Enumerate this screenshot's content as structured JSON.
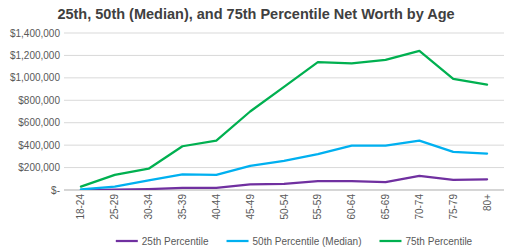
{
  "chart_data": {
    "type": "line",
    "title": "25th, 50th (Median), and 75th Percentile Net Worth by Age",
    "categories": [
      "18-24",
      "25-29",
      "30-34",
      "35-39",
      "40-44",
      "45-49",
      "50-54",
      "55-59",
      "60-64",
      "65-69",
      "70-74",
      "75-79",
      "80+"
    ],
    "series": [
      {
        "name": "25th Percentile",
        "color": "#7030a0",
        "values": [
          0,
          3000,
          8000,
          18000,
          20000,
          50000,
          55000,
          80000,
          80000,
          70000,
          125000,
          90000,
          95000
        ]
      },
      {
        "name": "50th Percentile (Median)",
        "color": "#00b0f0",
        "values": [
          5000,
          30000,
          85000,
          140000,
          135000,
          215000,
          260000,
          320000,
          395000,
          395000,
          440000,
          340000,
          325000
        ]
      },
      {
        "name": "75th Percentile",
        "color": "#00b050",
        "values": [
          30000,
          135000,
          190000,
          390000,
          440000,
          700000,
          920000,
          1140000,
          1130000,
          1160000,
          1240000,
          990000,
          940000
        ]
      }
    ],
    "ylim": [
      0,
      1400000
    ],
    "yticks": [
      {
        "value": 0,
        "label": "$-"
      },
      {
        "value": 200000,
        "label": "$200,000"
      },
      {
        "value": 400000,
        "label": "$400,000"
      },
      {
        "value": 600000,
        "label": "$600,000"
      },
      {
        "value": 800000,
        "label": "$800,000"
      },
      {
        "value": 1000000,
        "label": "$1,000,000"
      },
      {
        "value": 1200000,
        "label": "$1,200,000"
      },
      {
        "value": 1400000,
        "label": "$1,400,000"
      }
    ],
    "grid": true,
    "legend": "bottom"
  }
}
